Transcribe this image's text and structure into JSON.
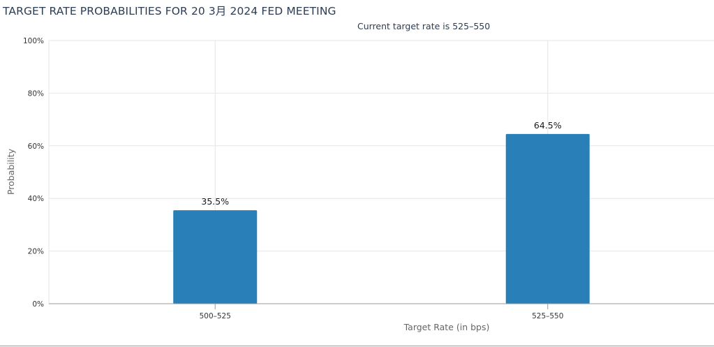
{
  "chart_data": {
    "type": "bar",
    "title": "TARGET RATE PROBABILITIES FOR 20 3月 2024 FED MEETING",
    "subtitle": "Current target rate is 525–550",
    "xlabel": "Target Rate (in bps)",
    "ylabel": "Probability",
    "categories": [
      "500–525",
      "525–550"
    ],
    "values": [
      35.5,
      64.5
    ],
    "data_labels": [
      "35.5%",
      "64.5%"
    ],
    "ylim": [
      0,
      100
    ],
    "yticks": [
      0,
      20,
      40,
      60,
      80,
      100
    ],
    "ytick_labels": [
      "0%",
      "20%",
      "40%",
      "60%",
      "80%",
      "100%"
    ],
    "grid": true,
    "bar_color": "#2980b9"
  }
}
